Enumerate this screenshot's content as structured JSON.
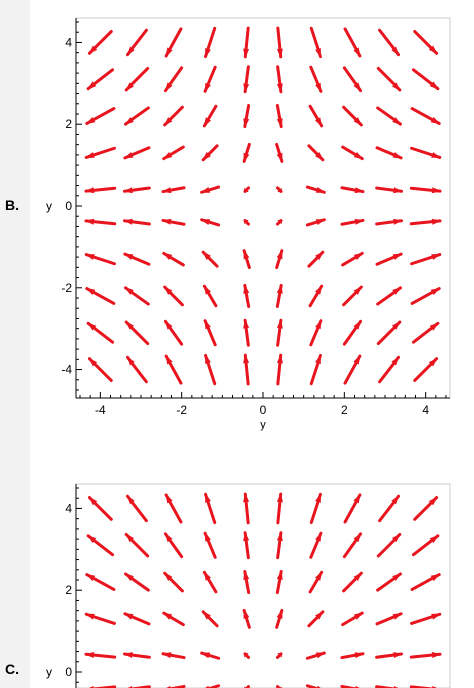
{
  "options": [
    {
      "label": "B."
    },
    {
      "label": "C."
    }
  ],
  "colors": {
    "arrow": "#e8141e",
    "axis": "#000000",
    "frame": "#cccccc"
  },
  "chart_data": [
    {
      "type": "vector-field",
      "title": "",
      "xlabel": "y",
      "ylabel": "y",
      "xlim": [
        -4.5,
        4.5
      ],
      "ylim": [
        -4.5,
        4.5
      ],
      "x_ticks": [
        "-4",
        "-2",
        "0",
        "2",
        "4"
      ],
      "y_ticks": [
        "4",
        "2",
        "0",
        "-2",
        "-4"
      ],
      "grid_x": [
        -4.0,
        -3.1,
        -2.2,
        -1.3,
        -0.4,
        0.4,
        1.3,
        2.2,
        3.1,
        4.0
      ],
      "grid_y": [
        4.0,
        3.1,
        2.2,
        1.3,
        0.4,
        -0.4,
        -1.3,
        -2.2,
        -3.1,
        -4.0
      ],
      "field": "dx/dt = x, dy/dt = -y"
    },
    {
      "type": "vector-field",
      "title": "",
      "xlabel": "",
      "ylabel": "y",
      "xlim": [
        -4.5,
        4.5
      ],
      "ylim": [
        -4.5,
        4.5
      ],
      "x_ticks": [],
      "y_ticks": [
        "4",
        "2",
        "0"
      ],
      "grid_x": [
        -4.0,
        -3.1,
        -2.2,
        -1.3,
        -0.4,
        0.4,
        1.3,
        2.2,
        3.1,
        4.0
      ],
      "grid_y": [
        4.0,
        3.1,
        2.2,
        1.3,
        0.4,
        -0.4
      ],
      "field": "dx/dt = x, dy/dt = y",
      "clipped": true
    }
  ]
}
